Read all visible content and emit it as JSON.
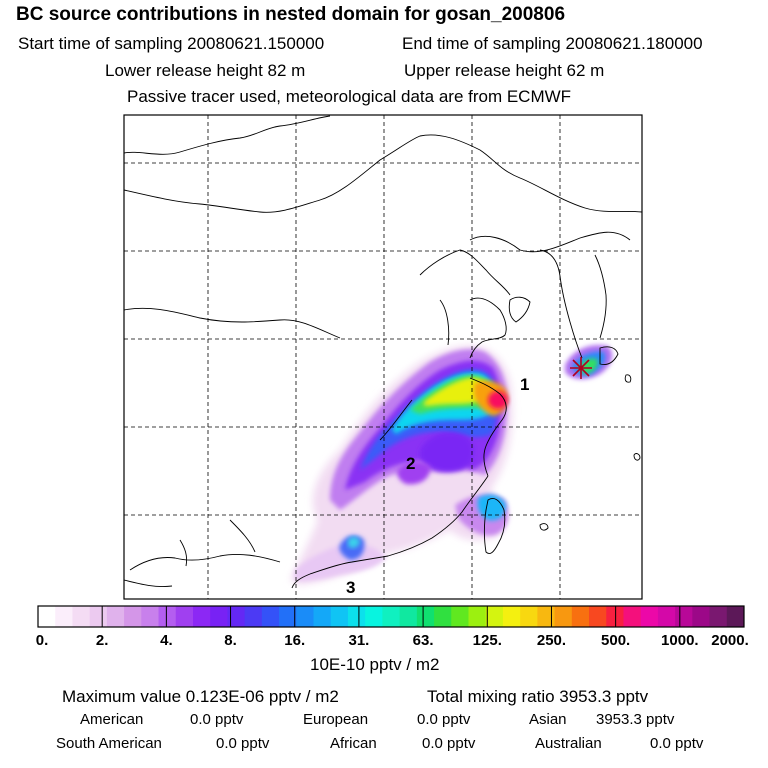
{
  "header": {
    "title": "BC  source contributions in nested domain for gosan_200806",
    "start_label": "Start time of sampling 20080621.150000",
    "end_label": "End time of sampling 20080621.180000",
    "lower_label": "Lower release height   82 m",
    "upper_label": "Upper release height   62 m",
    "note": "Passive tracer used, meteorological data are from ECMWF"
  },
  "map": {
    "region_labels": [
      "1",
      "2",
      "3"
    ],
    "receptor_marker": "receptor-star"
  },
  "colorbar": {
    "tick_labels": [
      "0.",
      "2.",
      "4.",
      "8.",
      "16.",
      "31.",
      "63.",
      "125.",
      "250.",
      "500.",
      "1000.",
      "2000."
    ],
    "unit": "10E-10 pptv / m2",
    "colors": [
      "#ffffff",
      "#fbeefb",
      "#f4dcf4",
      "#eccaf0",
      "#e0b2ec",
      "#d496e8",
      "#c880ec",
      "#b45ef0",
      "#a040f0",
      "#8c28f4",
      "#7822f4",
      "#6428f4",
      "#4c3af4",
      "#3452f8",
      "#2270f8",
      "#1a8cf8",
      "#14a8f8",
      "#10c4f4",
      "#0ce0ec",
      "#08f4e0",
      "#10f0c0",
      "#10e8a0",
      "#10e070",
      "#30e040",
      "#60e820",
      "#9cf010",
      "#d4f410",
      "#f4f010",
      "#f8d810",
      "#f8b810",
      "#f89810",
      "#f87010",
      "#f84820",
      "#f82040",
      "#f4107c",
      "#ec08a8",
      "#d408a8",
      "#b80898",
      "#9c0888",
      "#7a1870",
      "#5c1858"
    ]
  },
  "stats": {
    "max_value": "Maximum value  0.123E-06 pptv / m2",
    "total_mixing": "Total mixing ratio     3953.3 pptv",
    "row1": [
      {
        "name": "American",
        "value": "0.0 pptv"
      },
      {
        "name": "European",
        "value": "0.0 pptv"
      },
      {
        "name": "Asian",
        "value": "3953.3 pptv"
      }
    ],
    "row2": [
      {
        "name": "South American",
        "value": "0.0 pptv"
      },
      {
        "name": "African",
        "value": "0.0 pptv"
      },
      {
        "name": "Australian",
        "value": "0.0 pptv"
      }
    ]
  }
}
